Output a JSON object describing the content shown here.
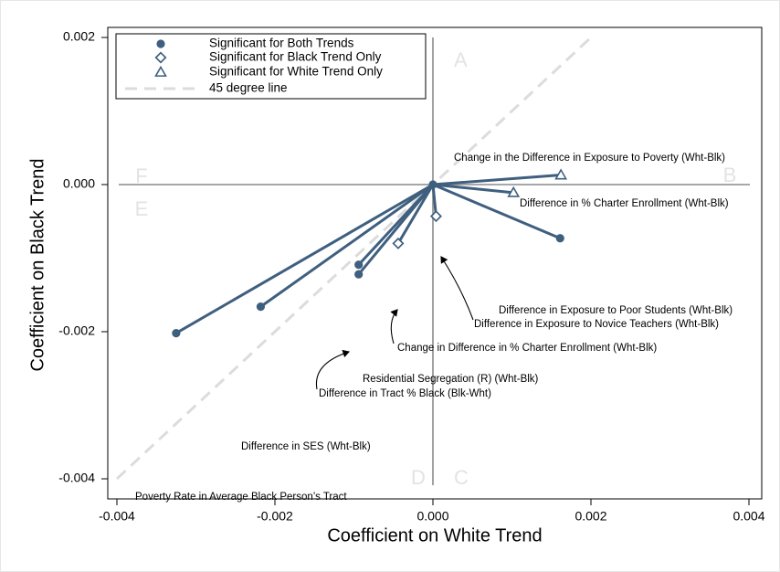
{
  "chart_data": {
    "type": "scatter",
    "xlabel": "Coefficient on White Trend",
    "ylabel": "Coefficient on Black Trend",
    "xlim": [
      -0.004,
      0.004
    ],
    "ylim": [
      -0.004,
      0.002
    ],
    "x_ticks": [
      "-0.004",
      "-0.002",
      "0.000",
      "0.002",
      "0.004"
    ],
    "y_ticks": [
      "-0.004",
      "-0.002",
      "0.000",
      "0.002"
    ],
    "grid": false,
    "legend_position": "top-left",
    "colors": {
      "series": "#3f5f7f",
      "ref_line": "#dcdcdc",
      "axis_lines": "#8a8a8a",
      "region_label": "#e3e3e3"
    },
    "legend": [
      {
        "label": "Significant for Both Trends",
        "marker": "circle"
      },
      {
        "label": "Significant for Black Trend Only",
        "marker": "diamond"
      },
      {
        "label": "Significant for White Trend Only",
        "marker": "triangle"
      },
      {
        "label": "45 degree line",
        "marker": "dashed-line"
      }
    ],
    "region_labels": [
      "A",
      "B",
      "C",
      "D",
      "E",
      "F"
    ],
    "origin": [
      0,
      0
    ],
    "reference_line": {
      "label": "45 degree line",
      "x": [
        -0.004,
        0.002
      ],
      "y": [
        -0.004,
        0.002
      ]
    },
    "points": [
      {
        "label": "Change in the Difference in Exposure to Poverty (Wht-Blk)",
        "x": 0.00162,
        "y": 0.00013,
        "marker": "triangle"
      },
      {
        "label": "Difference in % Charter Enrollment (Wht-Blk)",
        "x": 0.00102,
        "y": -0.00011,
        "marker": "triangle"
      },
      {
        "label": "Difference in Exposure to Poor Students (Wht-Blk)",
        "x": 0.00161,
        "y": -0.00073,
        "marker": "circle"
      },
      {
        "label": "Difference in Exposure to Novice Teachers (Wht-Blk)",
        "x": 4e-05,
        "y": -0.00043,
        "marker": "diamond"
      },
      {
        "label": "Change in Difference in % Charter Enrollment (Wht-Blk)",
        "x": -0.00044,
        "y": -0.0008,
        "marker": "diamond"
      },
      {
        "label": "Residential Segregation (R) (Wht-Blk)",
        "x": -0.00094,
        "y": -0.00122,
        "marker": "circle"
      },
      {
        "label": "Difference in Tract % Black (Blk-Wht)",
        "x": -0.00094,
        "y": -0.00109,
        "marker": "circle"
      },
      {
        "label": "Difference in SES (Wht-Blk)",
        "x": -0.00218,
        "y": -0.00166,
        "marker": "circle"
      },
      {
        "label": "Poverty Rate in Average Black Person’s Tract",
        "x": -0.00325,
        "y": -0.00202,
        "marker": "circle"
      }
    ]
  }
}
